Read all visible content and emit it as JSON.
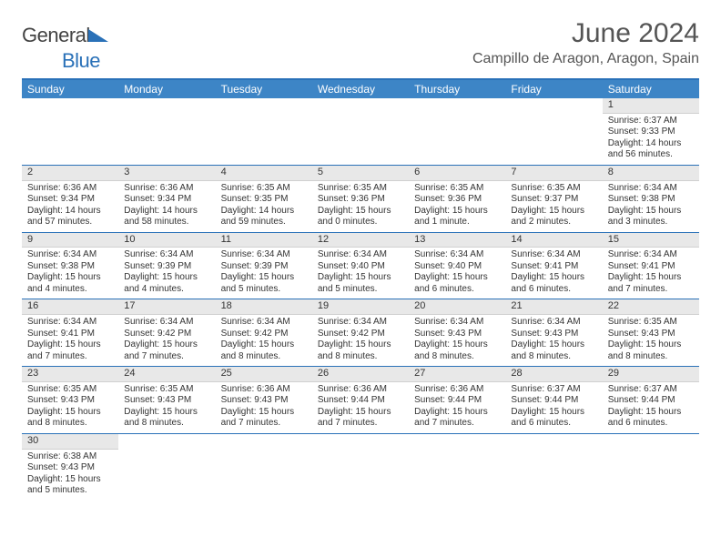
{
  "logo": {
    "general": "General",
    "blue": "Blue"
  },
  "title": {
    "month": "June 2024",
    "location": "Campillo de Aragon, Aragon, Spain"
  },
  "colors": {
    "header_bg": "#3d85c6",
    "border": "#2a71b8",
    "daynum_bg": "#e8e8e8",
    "text": "#333333",
    "title_text": "#555555"
  },
  "dayNames": [
    "Sunday",
    "Monday",
    "Tuesday",
    "Wednesday",
    "Thursday",
    "Friday",
    "Saturday"
  ],
  "weeks": [
    [
      null,
      null,
      null,
      null,
      null,
      null,
      {
        "n": "1",
        "sr": "Sunrise: 6:37 AM",
        "ss": "Sunset: 9:33 PM",
        "dl": "Daylight: 14 hours and 56 minutes."
      }
    ],
    [
      {
        "n": "2",
        "sr": "Sunrise: 6:36 AM",
        "ss": "Sunset: 9:34 PM",
        "dl": "Daylight: 14 hours and 57 minutes."
      },
      {
        "n": "3",
        "sr": "Sunrise: 6:36 AM",
        "ss": "Sunset: 9:34 PM",
        "dl": "Daylight: 14 hours and 58 minutes."
      },
      {
        "n": "4",
        "sr": "Sunrise: 6:35 AM",
        "ss": "Sunset: 9:35 PM",
        "dl": "Daylight: 14 hours and 59 minutes."
      },
      {
        "n": "5",
        "sr": "Sunrise: 6:35 AM",
        "ss": "Sunset: 9:36 PM",
        "dl": "Daylight: 15 hours and 0 minutes."
      },
      {
        "n": "6",
        "sr": "Sunrise: 6:35 AM",
        "ss": "Sunset: 9:36 PM",
        "dl": "Daylight: 15 hours and 1 minute."
      },
      {
        "n": "7",
        "sr": "Sunrise: 6:35 AM",
        "ss": "Sunset: 9:37 PM",
        "dl": "Daylight: 15 hours and 2 minutes."
      },
      {
        "n": "8",
        "sr": "Sunrise: 6:34 AM",
        "ss": "Sunset: 9:38 PM",
        "dl": "Daylight: 15 hours and 3 minutes."
      }
    ],
    [
      {
        "n": "9",
        "sr": "Sunrise: 6:34 AM",
        "ss": "Sunset: 9:38 PM",
        "dl": "Daylight: 15 hours and 4 minutes."
      },
      {
        "n": "10",
        "sr": "Sunrise: 6:34 AM",
        "ss": "Sunset: 9:39 PM",
        "dl": "Daylight: 15 hours and 4 minutes."
      },
      {
        "n": "11",
        "sr": "Sunrise: 6:34 AM",
        "ss": "Sunset: 9:39 PM",
        "dl": "Daylight: 15 hours and 5 minutes."
      },
      {
        "n": "12",
        "sr": "Sunrise: 6:34 AM",
        "ss": "Sunset: 9:40 PM",
        "dl": "Daylight: 15 hours and 5 minutes."
      },
      {
        "n": "13",
        "sr": "Sunrise: 6:34 AM",
        "ss": "Sunset: 9:40 PM",
        "dl": "Daylight: 15 hours and 6 minutes."
      },
      {
        "n": "14",
        "sr": "Sunrise: 6:34 AM",
        "ss": "Sunset: 9:41 PM",
        "dl": "Daylight: 15 hours and 6 minutes."
      },
      {
        "n": "15",
        "sr": "Sunrise: 6:34 AM",
        "ss": "Sunset: 9:41 PM",
        "dl": "Daylight: 15 hours and 7 minutes."
      }
    ],
    [
      {
        "n": "16",
        "sr": "Sunrise: 6:34 AM",
        "ss": "Sunset: 9:41 PM",
        "dl": "Daylight: 15 hours and 7 minutes."
      },
      {
        "n": "17",
        "sr": "Sunrise: 6:34 AM",
        "ss": "Sunset: 9:42 PM",
        "dl": "Daylight: 15 hours and 7 minutes."
      },
      {
        "n": "18",
        "sr": "Sunrise: 6:34 AM",
        "ss": "Sunset: 9:42 PM",
        "dl": "Daylight: 15 hours and 8 minutes."
      },
      {
        "n": "19",
        "sr": "Sunrise: 6:34 AM",
        "ss": "Sunset: 9:42 PM",
        "dl": "Daylight: 15 hours and 8 minutes."
      },
      {
        "n": "20",
        "sr": "Sunrise: 6:34 AM",
        "ss": "Sunset: 9:43 PM",
        "dl": "Daylight: 15 hours and 8 minutes."
      },
      {
        "n": "21",
        "sr": "Sunrise: 6:34 AM",
        "ss": "Sunset: 9:43 PM",
        "dl": "Daylight: 15 hours and 8 minutes."
      },
      {
        "n": "22",
        "sr": "Sunrise: 6:35 AM",
        "ss": "Sunset: 9:43 PM",
        "dl": "Daylight: 15 hours and 8 minutes."
      }
    ],
    [
      {
        "n": "23",
        "sr": "Sunrise: 6:35 AM",
        "ss": "Sunset: 9:43 PM",
        "dl": "Daylight: 15 hours and 8 minutes."
      },
      {
        "n": "24",
        "sr": "Sunrise: 6:35 AM",
        "ss": "Sunset: 9:43 PM",
        "dl": "Daylight: 15 hours and 8 minutes."
      },
      {
        "n": "25",
        "sr": "Sunrise: 6:36 AM",
        "ss": "Sunset: 9:43 PM",
        "dl": "Daylight: 15 hours and 7 minutes."
      },
      {
        "n": "26",
        "sr": "Sunrise: 6:36 AM",
        "ss": "Sunset: 9:44 PM",
        "dl": "Daylight: 15 hours and 7 minutes."
      },
      {
        "n": "27",
        "sr": "Sunrise: 6:36 AM",
        "ss": "Sunset: 9:44 PM",
        "dl": "Daylight: 15 hours and 7 minutes."
      },
      {
        "n": "28",
        "sr": "Sunrise: 6:37 AM",
        "ss": "Sunset: 9:44 PM",
        "dl": "Daylight: 15 hours and 6 minutes."
      },
      {
        "n": "29",
        "sr": "Sunrise: 6:37 AM",
        "ss": "Sunset: 9:44 PM",
        "dl": "Daylight: 15 hours and 6 minutes."
      }
    ],
    [
      {
        "n": "30",
        "sr": "Sunrise: 6:38 AM",
        "ss": "Sunset: 9:43 PM",
        "dl": "Daylight: 15 hours and 5 minutes."
      },
      null,
      null,
      null,
      null,
      null,
      null
    ]
  ]
}
